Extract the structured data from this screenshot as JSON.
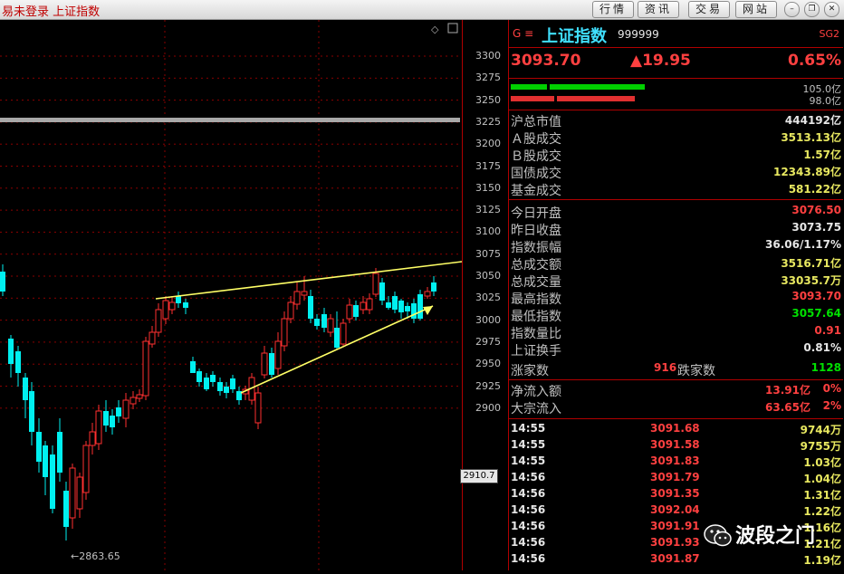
{
  "titlebar": {
    "app_title": "易未登录  上证指数",
    "menu": [
      "行情",
      "资讯",
      "交易",
      "网站"
    ]
  },
  "axis": {
    "ticks": [
      "3300",
      "3275",
      "3250",
      "3225",
      "3200",
      "3175",
      "3150",
      "3125",
      "3100",
      "3075",
      "3050",
      "3025",
      "3000",
      "2975",
      "2950",
      "2925",
      "2900"
    ],
    "current_price_box": "2910.7",
    "low_label": "←2863.65"
  },
  "header": {
    "prefix": "G ≡",
    "name": "上证指数",
    "code": "999999",
    "tag": "SG2"
  },
  "quote": {
    "last": "3093.70",
    "change": "▲19.95",
    "pct": "0.65%"
  },
  "bars": {
    "top_val": "105.0亿",
    "bottom_val": "98.0亿"
  },
  "fields": [
    {
      "label": "沪总市值",
      "value": "444192亿",
      "color": "wht"
    },
    {
      "label": "Ａ股成交",
      "value": "3513.13亿",
      "color": "yel"
    },
    {
      "label": "Ｂ股成交",
      "value": "1.57亿",
      "color": "yel"
    },
    {
      "label": "国债成交",
      "value": "12343.89亿",
      "color": "yel"
    },
    {
      "label": "基金成交",
      "value": "581.22亿",
      "color": "yel"
    },
    {
      "label": "今日开盘",
      "value": "3076.50",
      "color": "red"
    },
    {
      "label": "昨日收盘",
      "value": "3073.75",
      "color": "wht"
    },
    {
      "label": "指数振幅",
      "value": "36.06/1.17%",
      "color": "wht"
    },
    {
      "label": "总成交额",
      "value": "3516.71亿",
      "color": "yel"
    },
    {
      "label": "总成交量",
      "value": "33035.7万",
      "color": "yel"
    },
    {
      "label": "最高指数",
      "value": "3093.70",
      "color": "red"
    },
    {
      "label": "最低指数",
      "value": "3057.64",
      "color": "grn"
    },
    {
      "label": "指数量比",
      "value": "0.91",
      "color": "red"
    },
    {
      "label": "上证换手",
      "value": "0.81%",
      "color": "wht"
    }
  ],
  "breadth": {
    "up_label": "涨家数",
    "up_value": "916",
    "down_label": "跌家数",
    "down_value": "1128"
  },
  "flows": [
    {
      "label": "净流入额",
      "value": "13.91亿",
      "pct": "0%"
    },
    {
      "label": "大宗流入",
      "value": "63.65亿",
      "pct": "2%"
    }
  ],
  "ticks_table": [
    {
      "time": "14:55",
      "price": "3091.68",
      "vol": "9744万"
    },
    {
      "time": "14:55",
      "price": "3091.58",
      "vol": "9755万"
    },
    {
      "time": "14:55",
      "price": "3091.83",
      "vol": "1.03亿"
    },
    {
      "time": "14:56",
      "price": "3091.79",
      "vol": "1.04亿"
    },
    {
      "time": "14:56",
      "price": "3091.35",
      "vol": "1.31亿"
    },
    {
      "time": "14:56",
      "price": "3092.04",
      "vol": "1.22亿"
    },
    {
      "time": "14:56",
      "price": "3091.91",
      "vol": "1.16亿"
    },
    {
      "time": "14:56",
      "price": "3091.93",
      "vol": "1.21亿"
    },
    {
      "time": "14:56",
      "price": "3091.87",
      "vol": "1.19亿"
    }
  ],
  "watermark": "波段之门",
  "colors": {
    "up": "#ff3030",
    "down": "#00f0f0",
    "grid": "#b00000",
    "trend": "#ffff66"
  }
}
